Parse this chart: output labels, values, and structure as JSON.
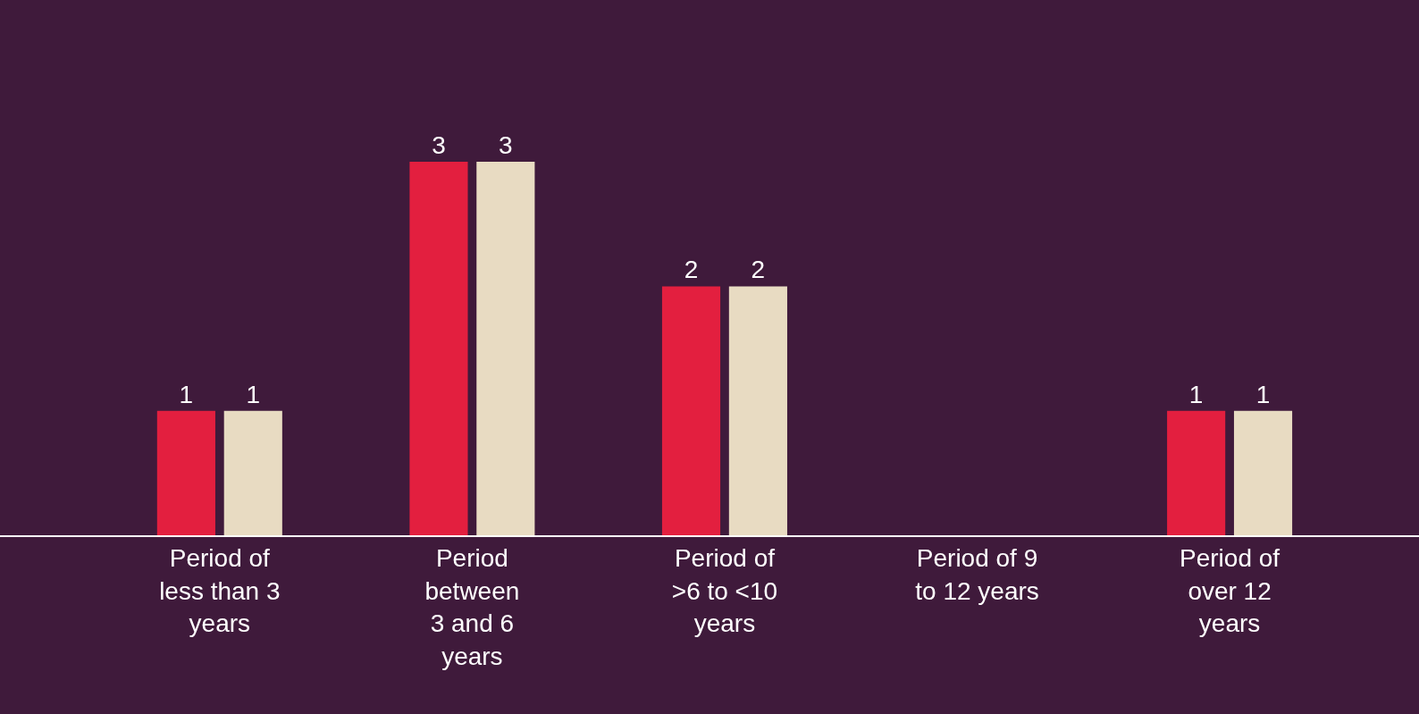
{
  "chart_data": {
    "type": "bar",
    "categories": [
      "Period of\nless than 3\nyears",
      "Period\nbetween\n3 and 6\nyears",
      "Period of\n>6 to <10\nyears",
      "Period of 9\nto 12 years",
      "Period of\nover 12\nyears"
    ],
    "series": [
      {
        "color": "#e31f3f",
        "values": [
          1,
          3,
          2,
          null,
          1
        ]
      },
      {
        "color": "#e8dbc2",
        "values": [
          1,
          3,
          2,
          null,
          1
        ]
      }
    ],
    "ylim": [
      0,
      4.3
    ],
    "data_labels": true,
    "tick_labels": "x",
    "grid": false
  }
}
